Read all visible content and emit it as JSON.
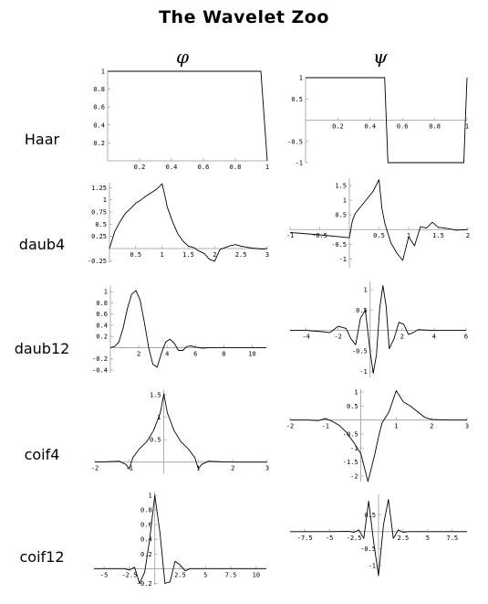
{
  "title": "The Wavelet Zoo",
  "columns": [
    "φ",
    "ψ"
  ],
  "rows": [
    "Haar",
    "daub4",
    "daub12",
    "coif4",
    "coif12"
  ],
  "chart_data": [
    {
      "id": "haar-phi",
      "type": "line",
      "ylabel": "",
      "xlabel": "",
      "xlim": [
        0,
        1
      ],
      "ylim": [
        0,
        1
      ],
      "x": [
        0,
        0.0,
        0.96,
        0.98,
        1.0
      ],
      "y": [
        1,
        1,
        1,
        0.5,
        0
      ],
      "xticks": [
        {
          "v": 0.2,
          "t": "0.2"
        },
        {
          "v": 0.4,
          "t": "0.4"
        },
        {
          "v": 0.6,
          "t": "0.6"
        },
        {
          "v": 0.8,
          "t": "0.8"
        },
        {
          "v": 1,
          "t": "1"
        }
      ],
      "yticks": [
        {
          "v": 0.2,
          "t": "0.2"
        },
        {
          "v": 0.4,
          "t": "0.4"
        },
        {
          "v": 0.6,
          "t": "0.6"
        },
        {
          "v": 0.8,
          "t": "0.8"
        },
        {
          "v": 1,
          "t": "1"
        }
      ]
    },
    {
      "id": "haar-psi",
      "type": "line",
      "xlim": [
        0,
        1
      ],
      "ylim": [
        -1,
        1
      ],
      "x": [
        0,
        0.49,
        0.5,
        0.51,
        0.98,
        0.99,
        1.0
      ],
      "y": [
        1,
        1,
        0,
        -1,
        -1,
        0,
        1
      ],
      "xticks": [
        {
          "v": 0.2,
          "t": "0.2"
        },
        {
          "v": 0.4,
          "t": "0.4"
        },
        {
          "v": 0.6,
          "t": "0.6"
        },
        {
          "v": 0.8,
          "t": "0.8"
        },
        {
          "v": 1,
          "t": "1"
        }
      ],
      "yticks": [
        {
          "v": -1,
          "t": "-1"
        },
        {
          "v": -0.5,
          "t": "-0.5"
        },
        {
          "v": 0.5,
          "t": "0.5"
        },
        {
          "v": 1,
          "t": "1"
        }
      ]
    },
    {
      "id": "daub4-phi",
      "type": "line",
      "xlim": [
        0,
        3
      ],
      "ylim": [
        -0.3,
        1.35
      ],
      "x": [
        0,
        0.1,
        0.2,
        0.3,
        0.4,
        0.5,
        0.6,
        0.7,
        0.8,
        0.9,
        1.0,
        1.05,
        1.1,
        1.2,
        1.3,
        1.4,
        1.5,
        1.6,
        1.7,
        1.8,
        1.9,
        2.0,
        2.1,
        2.2,
        2.3,
        2.4,
        2.5,
        2.6,
        2.7,
        2.8,
        2.9,
        3.0
      ],
      "y": [
        0,
        0.35,
        0.55,
        0.72,
        0.82,
        0.93,
        1.0,
        1.08,
        1.15,
        1.22,
        1.33,
        1.1,
        0.85,
        0.55,
        0.3,
        0.15,
        0.05,
        0.02,
        -0.05,
        -0.1,
        -0.22,
        -0.26,
        -0.02,
        0.02,
        0.06,
        0.08,
        0.05,
        0.03,
        0.01,
        0.0,
        -0.01,
        0
      ],
      "xticks": [
        {
          "v": 0.5,
          "t": "0.5"
        },
        {
          "v": 1,
          "t": "1"
        },
        {
          "v": 1.5,
          "t": "1.5"
        },
        {
          "v": 2,
          "t": "2"
        },
        {
          "v": 2.5,
          "t": "2.5"
        },
        {
          "v": 3,
          "t": "3"
        }
      ],
      "yticks": [
        {
          "v": -0.25,
          "t": "-0.25"
        },
        {
          "v": 0.25,
          "t": "0.25"
        },
        {
          "v": 0.5,
          "t": "0.5"
        },
        {
          "v": 0.75,
          "t": "0.75"
        },
        {
          "v": 1,
          "t": "1"
        },
        {
          "v": 1.25,
          "t": "1.25"
        }
      ]
    },
    {
      "id": "daub4-psi",
      "type": "line",
      "xlim": [
        -1,
        2
      ],
      "ylim": [
        -1.3,
        1.75
      ],
      "x": [
        -1,
        -0.5,
        0,
        0.05,
        0.1,
        0.2,
        0.3,
        0.4,
        0.5,
        0.55,
        0.6,
        0.7,
        0.8,
        0.9,
        1.0,
        1.1,
        1.2,
        1.3,
        1.4,
        1.5,
        1.6,
        1.7,
        1.8,
        1.9,
        2.0
      ],
      "y": [
        -0.1,
        -0.18,
        -0.28,
        0.3,
        0.55,
        0.8,
        1.05,
        1.3,
        1.7,
        0.7,
        0.2,
        -0.45,
        -0.8,
        -1.05,
        -0.25,
        -0.55,
        0.1,
        0.05,
        0.25,
        0.08,
        0.05,
        0.02,
        -0.02,
        -0.01,
        0
      ],
      "xticks": [
        {
          "v": -1,
          "t": "-1"
        },
        {
          "v": -0.5,
          "t": "-0.5"
        },
        {
          "v": 0.5,
          "t": "0.5"
        },
        {
          "v": 1,
          "t": "1"
        },
        {
          "v": 1.5,
          "t": "1.5"
        },
        {
          "v": 2,
          "t": "2"
        }
      ],
      "yticks": [
        {
          "v": -1,
          "t": "-1"
        },
        {
          "v": -0.5,
          "t": "-0.5"
        },
        {
          "v": 0.5,
          "t": "0.5"
        },
        {
          "v": 1,
          "t": "1"
        },
        {
          "v": 1.5,
          "t": "1.5"
        }
      ]
    },
    {
      "id": "daub12-phi",
      "type": "line",
      "xlim": [
        0,
        11
      ],
      "ylim": [
        -0.45,
        1.1
      ],
      "x": [
        0,
        0.3,
        0.6,
        0.9,
        1.2,
        1.5,
        1.8,
        2.1,
        2.4,
        2.7,
        3.0,
        3.3,
        3.6,
        3.9,
        4.2,
        4.5,
        4.8,
        5.1,
        5.4,
        5.7,
        6.0,
        6.5,
        7.0,
        7.5,
        8,
        9,
        10,
        11
      ],
      "y": [
        0,
        0.02,
        0.1,
        0.35,
        0.7,
        0.95,
        1.02,
        0.85,
        0.45,
        0.0,
        -0.3,
        -0.35,
        -0.1,
        0.1,
        0.15,
        0.08,
        -0.05,
        -0.05,
        0.02,
        0.03,
        0.01,
        -0.01,
        0.0,
        0.0,
        0,
        0,
        0,
        0
      ],
      "xticks": [
        {
          "v": 2,
          "t": "2"
        },
        {
          "v": 4,
          "t": "4"
        },
        {
          "v": 6,
          "t": "6"
        },
        {
          "v": 8,
          "t": "8"
        },
        {
          "v": 10,
          "t": "10"
        }
      ],
      "yticks": [
        {
          "v": -0.4,
          "t": "-0.4"
        },
        {
          "v": -0.2,
          "t": "-0.2"
        },
        {
          "v": 0.2,
          "t": "0.2"
        },
        {
          "v": 0.4,
          "t": "0.4"
        },
        {
          "v": 0.6,
          "t": "0.6"
        },
        {
          "v": 0.8,
          "t": "0.8"
        },
        {
          "v": 1,
          "t": "1"
        }
      ]
    },
    {
      "id": "daub12-psi",
      "type": "line",
      "xlim": [
        -5,
        6
      ],
      "ylim": [
        -1.15,
        1.2
      ],
      "x": [
        -5,
        -4,
        -3,
        -2.5,
        -2,
        -1.5,
        -1.2,
        -0.9,
        -0.6,
        -0.3,
        0,
        0.2,
        0.4,
        0.6,
        0.8,
        1.0,
        1.2,
        1.5,
        1.8,
        2.1,
        2.4,
        2.7,
        3.0,
        3.5,
        4,
        5,
        6
      ],
      "y": [
        0,
        0.0,
        -0.03,
        -0.05,
        0.1,
        0.05,
        -0.2,
        -0.35,
        0.3,
        0.5,
        -0.5,
        -1.05,
        -0.6,
        0.55,
        1.1,
        0.6,
        -0.45,
        -0.2,
        0.2,
        0.15,
        -0.1,
        -0.05,
        0.02,
        0.01,
        0,
        0,
        0
      ],
      "xticks": [
        {
          "v": -4,
          "t": "-4"
        },
        {
          "v": -2,
          "t": "-2"
        },
        {
          "v": 2,
          "t": "2"
        },
        {
          "v": 4,
          "t": "4"
        },
        {
          "v": 6,
          "t": "6"
        }
      ],
      "yticks": [
        {
          "v": -1,
          "t": "-1"
        },
        {
          "v": -0.5,
          "t": "-0.5"
        },
        {
          "v": 0.5,
          "t": "0.5"
        },
        {
          "v": 1,
          "t": "1"
        }
      ]
    },
    {
      "id": "coif4-phi",
      "type": "line",
      "xlim": [
        -2,
        3
      ],
      "ylim": [
        -0.25,
        1.6
      ],
      "x": [
        -2,
        -1.6,
        -1.3,
        -1.1,
        -1.0,
        -0.9,
        -0.7,
        -0.5,
        -0.3,
        -0.1,
        0,
        0.1,
        0.3,
        0.5,
        0.7,
        0.9,
        1.0,
        1.1,
        1.3,
        1.6,
        2,
        2.5,
        3
      ],
      "y": [
        0,
        0.01,
        0.02,
        -0.05,
        -0.15,
        0.1,
        0.3,
        0.45,
        0.7,
        1.1,
        1.52,
        1.1,
        0.7,
        0.45,
        0.3,
        0.1,
        -0.15,
        -0.05,
        0.02,
        0.01,
        0,
        0,
        0
      ],
      "xticks": [
        {
          "v": -2,
          "t": "-2"
        },
        {
          "v": -1,
          "t": "-1"
        },
        {
          "v": 1,
          "t": "1"
        },
        {
          "v": 2,
          "t": "2"
        },
        {
          "v": 3,
          "t": "3"
        }
      ],
      "yticks": [
        {
          "v": 0.5,
          "t": "0.5"
        },
        {
          "v": 1,
          "t": "1"
        },
        {
          "v": 1.5,
          "t": "1.5"
        }
      ]
    },
    {
      "id": "coif4-psi",
      "type": "line",
      "xlim": [
        -2,
        3
      ],
      "ylim": [
        -2.2,
        1.1
      ],
      "x": [
        -2,
        -1.5,
        -1.2,
        -1.0,
        -0.8,
        -0.6,
        -0.4,
        -0.2,
        0,
        0.2,
        0.4,
        0.5,
        0.6,
        0.8,
        1.0,
        1.2,
        1.4,
        1.6,
        1.8,
        2.0,
        2.5,
        3
      ],
      "y": [
        0,
        0.0,
        -0.02,
        0.05,
        -0.05,
        -0.2,
        -0.45,
        -0.8,
        -1.2,
        -2.2,
        -1.2,
        -0.6,
        -0.1,
        0.3,
        1.05,
        0.65,
        0.5,
        0.3,
        0.1,
        0.02,
        0,
        0
      ],
      "xticks": [
        {
          "v": -2,
          "t": "-2"
        },
        {
          "v": -1,
          "t": "-1"
        },
        {
          "v": 1,
          "t": "1"
        },
        {
          "v": 2,
          "t": "2"
        },
        {
          "v": 3,
          "t": "3"
        }
      ],
      "yticks": [
        {
          "v": -2,
          "t": "-2"
        },
        {
          "v": -1.5,
          "t": "-1.5"
        },
        {
          "v": -1,
          "t": "-1"
        },
        {
          "v": -0.5,
          "t": "-0.5"
        },
        {
          "v": 0.5,
          "t": "0.5"
        },
        {
          "v": 1,
          "t": "1"
        }
      ]
    },
    {
      "id": "coif12-phi",
      "type": "line",
      "xlim": [
        -6,
        11
      ],
      "ylim": [
        -0.22,
        1.05
      ],
      "x": [
        -6,
        -4,
        -3,
        -2.5,
        -2.0,
        -1.5,
        -1.0,
        -0.5,
        0,
        0.5,
        1.0,
        1.5,
        2.0,
        2.5,
        3.0,
        3.5,
        4,
        6,
        8,
        11
      ],
      "y": [
        0,
        0,
        0.0,
        -0.02,
        0.02,
        -0.2,
        -0.05,
        0.4,
        1.0,
        0.5,
        -0.2,
        -0.18,
        0.1,
        0.05,
        -0.03,
        0.0,
        0,
        0,
        0,
        0
      ],
      "xticks": [
        {
          "v": -5,
          "t": "-5"
        },
        {
          "v": -2.5,
          "t": "-2.5"
        },
        {
          "v": 2.5,
          "t": "2.5"
        },
        {
          "v": 5,
          "t": "5"
        },
        {
          "v": 7.5,
          "t": "7.5"
        },
        {
          "v": 10,
          "t": "10"
        }
      ],
      "yticks": [
        {
          "v": -0.2,
          "t": "-0.2"
        },
        {
          "v": 0.2,
          "t": "0.2"
        },
        {
          "v": 0.4,
          "t": "0.4"
        },
        {
          "v": 0.6,
          "t": "0.6"
        },
        {
          "v": 0.8,
          "t": "0.8"
        },
        {
          "v": 1,
          "t": "1"
        }
      ]
    },
    {
      "id": "coif12-psi",
      "type": "line",
      "xlim": [
        -9,
        9
      ],
      "ylim": [
        -1.3,
        1.1
      ],
      "x": [
        -9,
        -5,
        -3,
        -2.5,
        -2,
        -1.5,
        -1.0,
        -0.5,
        0,
        0.5,
        1.0,
        1.5,
        2,
        2.5,
        3,
        5,
        9
      ],
      "y": [
        0,
        0,
        0.01,
        -0.02,
        0.05,
        -0.2,
        0.9,
        -0.3,
        -1.3,
        0.2,
        0.95,
        -0.2,
        0.05,
        -0.02,
        0.0,
        0,
        0
      ],
      "xticks": [
        {
          "v": -7.5,
          "t": "-7.5"
        },
        {
          "v": -5,
          "t": "-5"
        },
        {
          "v": -2.5,
          "t": "-2.5"
        },
        {
          "v": 2.5,
          "t": "2.5"
        },
        {
          "v": 5,
          "t": "5"
        },
        {
          "v": 7.5,
          "t": "7.5"
        }
      ],
      "yticks": [
        {
          "v": -1,
          "t": "-1"
        },
        {
          "v": -0.5,
          "t": "-0.5"
        },
        {
          "v": 0.5,
          "t": "0.5"
        }
      ]
    }
  ]
}
